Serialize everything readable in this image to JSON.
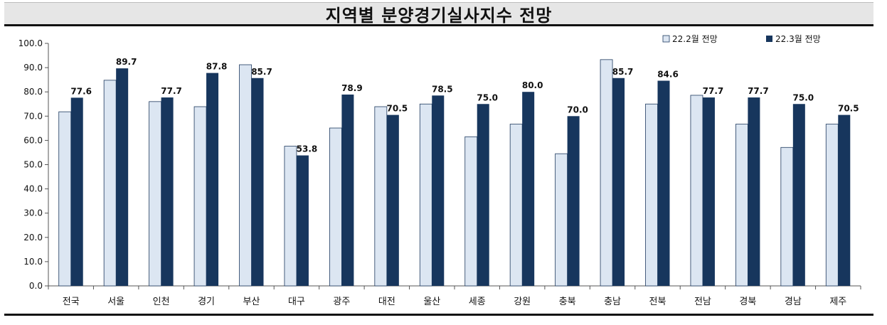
{
  "header": {
    "title": "지역별 분양경기실사지수 전망"
  },
  "colors": {
    "prev": "#dce6f2",
    "prev_stroke": "#1f3a5f",
    "curr": "#17365d"
  },
  "chart_data": {
    "type": "bar",
    "title": "지역별 분양경기실사지수 전망",
    "xlabel": "",
    "ylabel": "",
    "ylim": [
      0,
      100
    ],
    "yticks": [
      "0.0",
      "10.0",
      "20.0",
      "30.0",
      "40.0",
      "50.0",
      "60.0",
      "70.0",
      "80.0",
      "90.0",
      "100.0"
    ],
    "grid": false,
    "legend": "top-right",
    "categories": [
      "전국",
      "서울",
      "인천",
      "경기",
      "부산",
      "대구",
      "광주",
      "대전",
      "울산",
      "세종",
      "강원",
      "충북",
      "충남",
      "전북",
      "전남",
      "경북",
      "경남",
      "제주"
    ],
    "series": [
      {
        "name": "22.2월 전망",
        "values": [
          71.8,
          84.8,
          76.0,
          73.9,
          91.2,
          57.6,
          65.1,
          73.9,
          75.0,
          61.5,
          66.7,
          54.5,
          93.3,
          75.0,
          78.6,
          66.7,
          57.1,
          66.7
        ]
      },
      {
        "name": "22.3월 전망",
        "values": [
          77.6,
          89.7,
          77.7,
          87.8,
          85.7,
          53.8,
          78.9,
          70.5,
          78.5,
          75.0,
          80.0,
          70.0,
          85.7,
          84.6,
          77.7,
          77.7,
          75.0,
          70.5
        ],
        "labels": [
          "77.6",
          "89.7",
          "77.7",
          "87.8",
          "85.7",
          "53.8",
          "78.9",
          "70.5",
          "78.5",
          "75.0",
          "80.0",
          "70.0",
          "85.7",
          "84.6",
          "77.7",
          "77.7",
          "75.0",
          "70.5"
        ]
      }
    ]
  }
}
